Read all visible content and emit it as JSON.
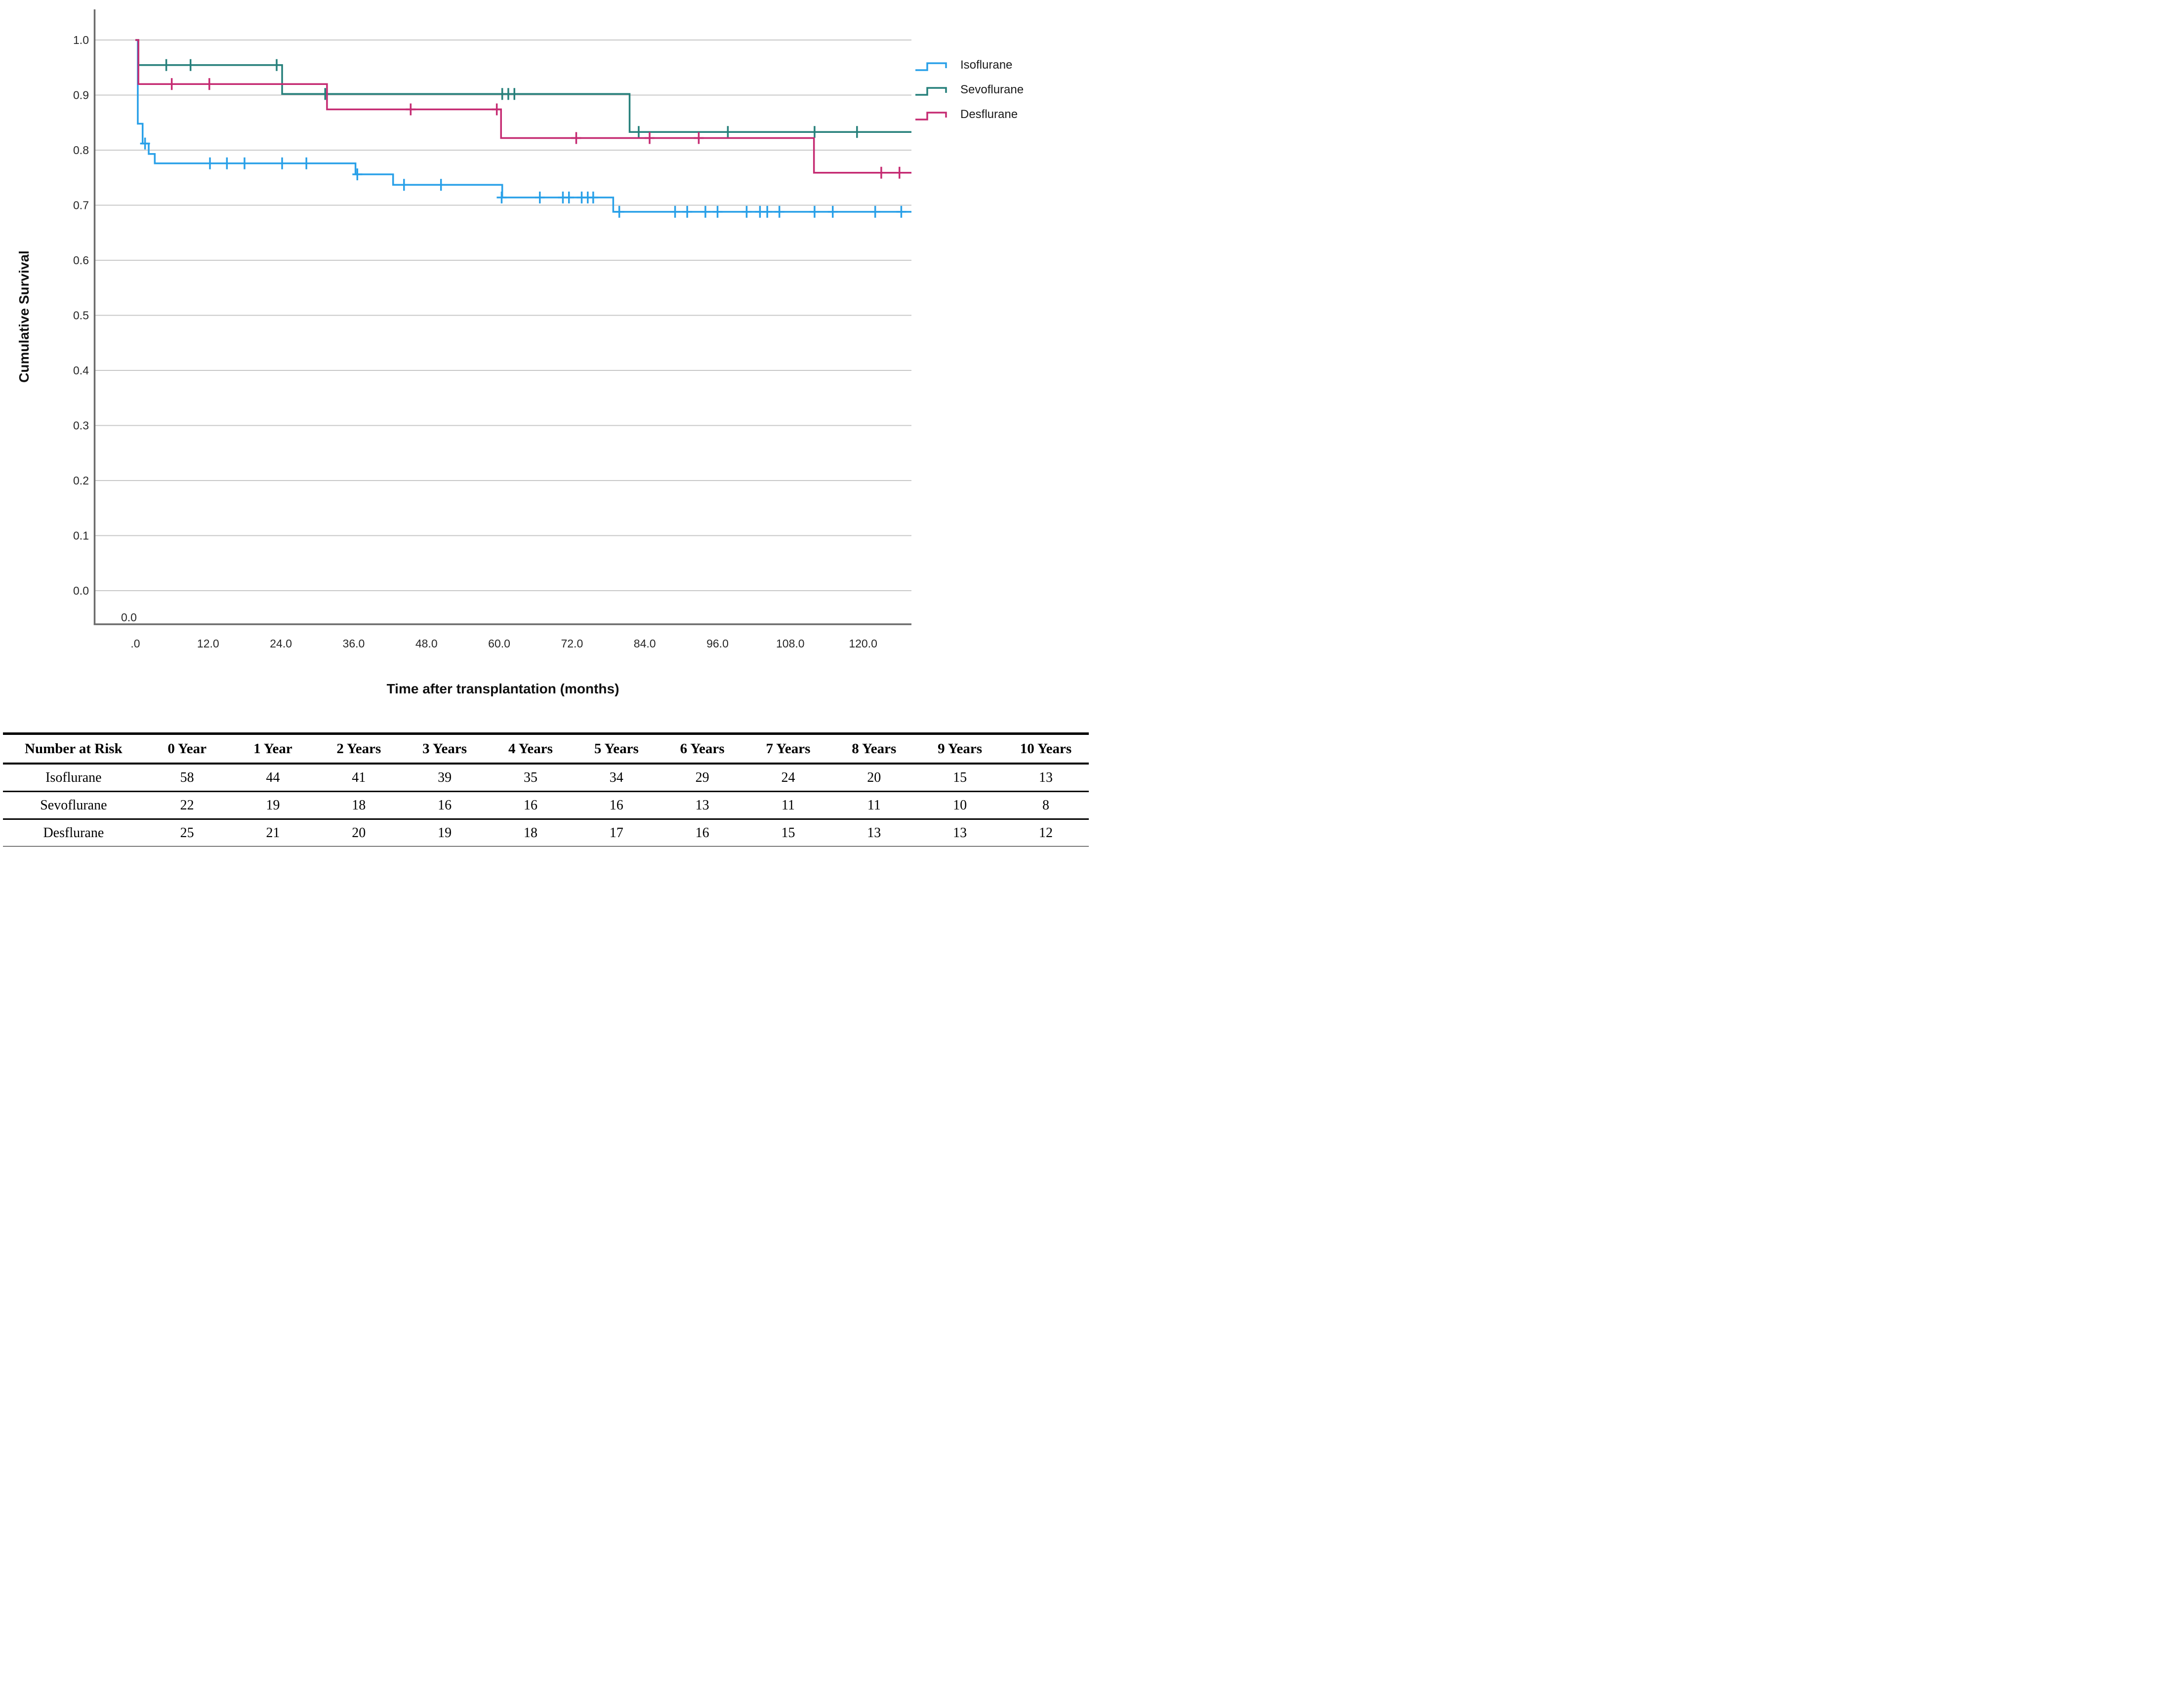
{
  "chart_data": {
    "type": "line",
    "subtype": "kaplan-meier-step-survival",
    "title": "",
    "xlabel": "Time after transplantation (months)",
    "ylabel": "Cumulative Survival",
    "origin_label": "0.0",
    "grid": "horizontal-only",
    "legend_position": "right",
    "x_range_months": [
      -6.7,
      128.0
    ],
    "y_range": [
      -0.06,
      1.056
    ],
    "x_ticks": [
      {
        "value": 0,
        "label": ".0"
      },
      {
        "value": 12,
        "label": "12.0"
      },
      {
        "value": 24,
        "label": "24.0"
      },
      {
        "value": 36,
        "label": "36.0"
      },
      {
        "value": 48,
        "label": "48.0"
      },
      {
        "value": 60,
        "label": "60.0"
      },
      {
        "value": 72,
        "label": "72.0"
      },
      {
        "value": 84,
        "label": "84.0"
      },
      {
        "value": 96,
        "label": "96.0"
      },
      {
        "value": 108,
        "label": "108.0"
      },
      {
        "value": 120,
        "label": "120.0"
      }
    ],
    "y_ticks": [
      {
        "value": 1.0,
        "label": "1.0"
      },
      {
        "value": 0.9,
        "label": "0.9"
      },
      {
        "value": 0.8,
        "label": "0.8"
      },
      {
        "value": 0.7,
        "label": "0.7"
      },
      {
        "value": 0.6,
        "label": "0.6"
      },
      {
        "value": 0.5,
        "label": "0.5"
      },
      {
        "value": 0.4,
        "label": "0.4"
      },
      {
        "value": 0.3,
        "label": "0.3"
      },
      {
        "value": 0.2,
        "label": "0.2"
      },
      {
        "value": 0.1,
        "label": "0.1"
      },
      {
        "value": 0.0,
        "label": "0.0"
      }
    ],
    "series": [
      {
        "name": "Isoflurane",
        "color": "#29A0E8",
        "start": [
          0,
          1.0
        ],
        "steps": [
          [
            0.4,
            0.848
          ],
          [
            1.2,
            0.812
          ],
          [
            2.2,
            0.793
          ],
          [
            3.2,
            0.776
          ],
          [
            36.3,
            0.756
          ],
          [
            42.5,
            0.737
          ],
          [
            60.5,
            0.714
          ],
          [
            78.8,
            0.688
          ]
        ],
        "end_month": 128.0,
        "censors": [
          [
            1.6,
            0.812
          ],
          [
            12.3,
            0.776
          ],
          [
            15.1,
            0.776
          ],
          [
            18.0,
            0.776
          ],
          [
            24.2,
            0.776
          ],
          [
            28.2,
            0.776
          ],
          [
            36.6,
            0.756
          ],
          [
            44.3,
            0.737
          ],
          [
            50.4,
            0.737
          ],
          [
            60.4,
            0.714
          ],
          [
            66.7,
            0.714
          ],
          [
            70.5,
            0.714
          ],
          [
            71.5,
            0.714
          ],
          [
            73.6,
            0.714
          ],
          [
            74.6,
            0.714
          ],
          [
            75.5,
            0.714
          ],
          [
            79.8,
            0.688
          ],
          [
            89.0,
            0.688
          ],
          [
            91.0,
            0.688
          ],
          [
            94.0,
            0.688
          ],
          [
            96.0,
            0.688
          ],
          [
            100.8,
            0.688
          ],
          [
            103.0,
            0.688
          ],
          [
            104.2,
            0.688
          ],
          [
            106.2,
            0.688
          ],
          [
            112.0,
            0.688
          ],
          [
            115.0,
            0.688
          ],
          [
            122.0,
            0.688
          ],
          [
            126.3,
            0.688
          ]
        ]
      },
      {
        "name": "Sevoflurane",
        "color": "#26807B",
        "start": [
          0,
          1.0
        ],
        "steps": [
          [
            0.5,
            0.9545
          ],
          [
            24.2,
            0.902
          ],
          [
            81.5,
            0.833
          ]
        ],
        "end_month": 128.0,
        "censors": [
          [
            5.1,
            0.9545
          ],
          [
            9.1,
            0.9545
          ],
          [
            23.3,
            0.9545
          ],
          [
            31.3,
            0.902
          ],
          [
            60.5,
            0.902
          ],
          [
            61.5,
            0.902
          ],
          [
            62.5,
            0.902
          ],
          [
            83.0,
            0.833
          ],
          [
            97.7,
            0.833
          ],
          [
            112.0,
            0.833
          ],
          [
            119.0,
            0.833
          ]
        ]
      },
      {
        "name": "Desflurane",
        "color": "#C52B72",
        "start": [
          0,
          1.0
        ],
        "steps": [
          [
            0.5,
            0.92
          ],
          [
            31.6,
            0.874
          ],
          [
            60.3,
            0.822
          ],
          [
            111.9,
            0.759
          ]
        ],
        "end_month": 128.0,
        "censors": [
          [
            6.0,
            0.92
          ],
          [
            12.2,
            0.92
          ],
          [
            45.4,
            0.874
          ],
          [
            59.6,
            0.874
          ],
          [
            72.7,
            0.822
          ],
          [
            84.8,
            0.822
          ],
          [
            92.9,
            0.822
          ],
          [
            123.0,
            0.759
          ],
          [
            126.0,
            0.759
          ]
        ]
      }
    ],
    "risk_table": {
      "corner_label": "Number at Risk",
      "column_headers": [
        "0 Year",
        "1 Year",
        "2 Years",
        "3 Years",
        "4 Years",
        "5 Years",
        "6 Years",
        "7 Years",
        "8 Years",
        "9 Years",
        "10 Years"
      ],
      "rows": [
        {
          "label": "Isoflurane",
          "values": [
            58,
            44,
            41,
            39,
            35,
            34,
            29,
            24,
            20,
            15,
            13
          ]
        },
        {
          "label": "Sevoflurane",
          "values": [
            22,
            19,
            18,
            16,
            16,
            16,
            13,
            11,
            11,
            10,
            8
          ]
        },
        {
          "label": "Desflurane",
          "values": [
            25,
            21,
            20,
            19,
            18,
            17,
            16,
            15,
            13,
            13,
            12
          ]
        }
      ]
    },
    "colors": {
      "grid": "#C8C8C8",
      "axis": "#6B6B6B",
      "text": "#1A1A1A"
    }
  }
}
